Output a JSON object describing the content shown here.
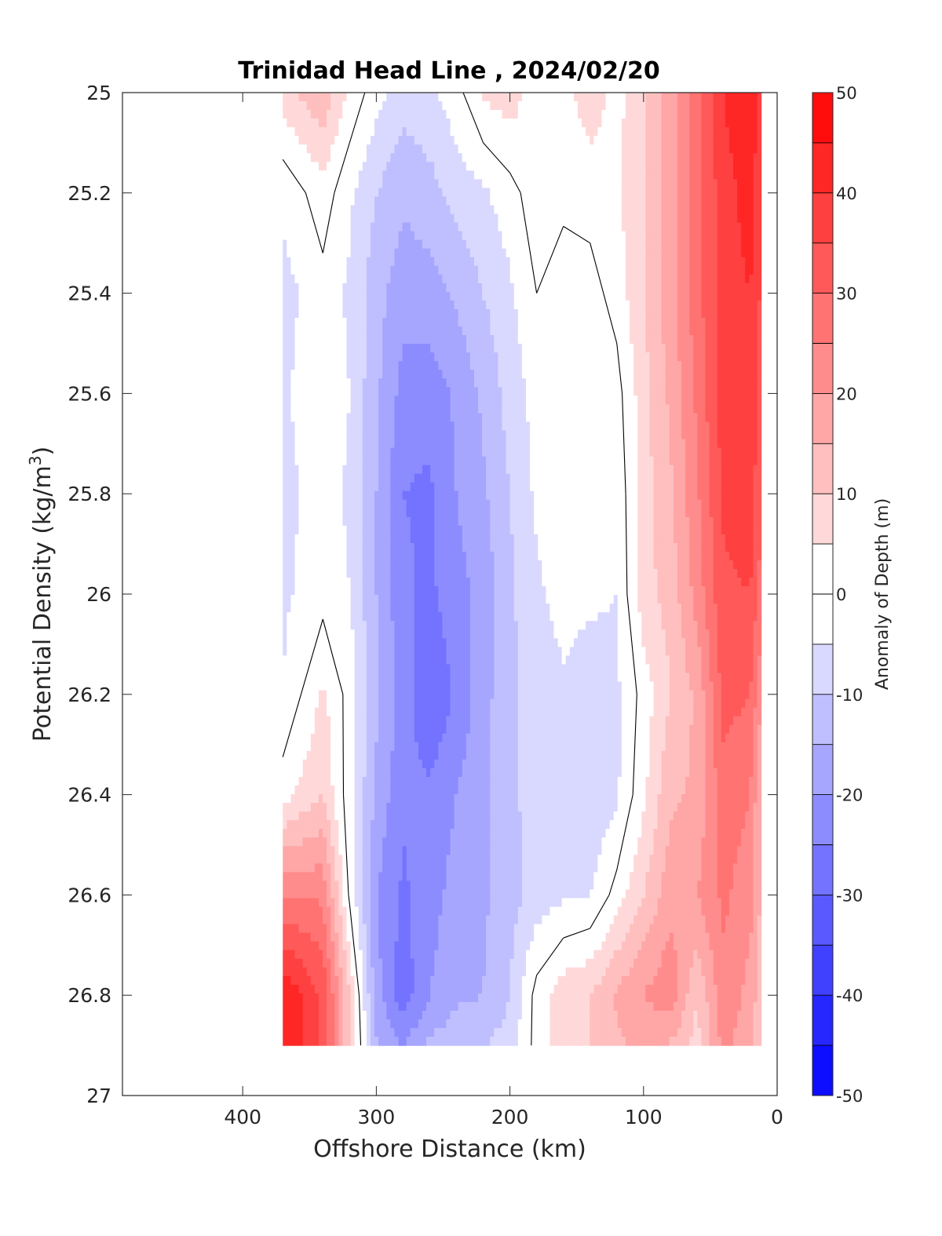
{
  "chart_data": {
    "type": "heatmap",
    "title": "Trinidad Head Line , 2024/02/20",
    "xlabel": "Offshore Distance (km)",
    "ylabel": "Potential Density (kg/m",
    "ylabel_sup": "3",
    "ylabel_close": ")",
    "colorbar_label": "Anomaly of Depth (m)",
    "xlim": [
      490,
      0
    ],
    "ylim": [
      25,
      27
    ],
    "x_direction": "reversed",
    "y_direction": "reversed",
    "grid": false,
    "x_ticks": [
      400,
      300,
      200,
      100,
      0
    ],
    "y_ticks": [
      25,
      25.2,
      25.4,
      25.6,
      25.8,
      26,
      26.2,
      26.4,
      26.6,
      26.8,
      27
    ],
    "y_tick_labels": [
      "25",
      "25.2",
      "25.4",
      "25.6",
      "25.8",
      "26",
      "26.2",
      "26.4",
      "26.6",
      "26.8",
      "27"
    ],
    "colorbar": {
      "min": -50,
      "max": 50,
      "step": 5,
      "tick_values": [
        50,
        40,
        30,
        20,
        10,
        0,
        -10,
        -20,
        -30,
        -40,
        -50
      ],
      "tick_labels": [
        "50",
        "40",
        "30",
        "20",
        "10",
        "0",
        "-10",
        "-20",
        "-30",
        "-40",
        "-50"
      ],
      "low_color": "#0000ff",
      "mid_color": "#ffffff",
      "high_color": "#ff0000"
    },
    "data_extent": {
      "x_min": 12,
      "x_max": 370,
      "y_min": 25,
      "y_max": 26.9
    },
    "x": [
      370,
      340,
      320,
      300,
      280,
      260,
      240,
      220,
      200,
      180,
      160,
      140,
      120,
      100,
      80,
      60,
      40,
      20,
      12
    ],
    "y": [
      25,
      25.2,
      25.4,
      25.6,
      25.8,
      26,
      26.2,
      26.4,
      26.6,
      26.8,
      26.9
    ],
    "z": [
      [
        8,
        14,
        4,
        -3,
        -8,
        -6,
        -2,
        6,
        8,
        2,
        3,
        8,
        3,
        10,
        18,
        28,
        40,
        45,
        38
      ],
      [
        -4,
        3,
        -4,
        -10,
        -14,
        -12,
        -8,
        -6,
        -2,
        3,
        1,
        2,
        4,
        10,
        18,
        28,
        38,
        42,
        35
      ],
      [
        -7,
        -2,
        -6,
        -13,
        -18,
        -17,
        -14,
        -10,
        -6,
        0,
        -2,
        -2,
        2,
        10,
        18,
        28,
        38,
        40,
        34
      ],
      [
        -6,
        -1,
        -5,
        -14,
        -22,
        -23,
        -19,
        -14,
        -8,
        -3,
        -4,
        -3,
        -2,
        8,
        16,
        26,
        38,
        40,
        32
      ],
      [
        -7,
        -2,
        -6,
        -15,
        -25,
        -26,
        -20,
        -16,
        -10,
        -4,
        0,
        -2,
        -4,
        8,
        14,
        24,
        36,
        38,
        30
      ],
      [
        -6,
        -2,
        -5,
        -15,
        -24,
        -26,
        -22,
        -18,
        -11,
        -6,
        -3,
        -4,
        -5,
        8,
        12,
        22,
        34,
        35,
        28
      ],
      [
        -5,
        6,
        -2,
        -14,
        -22,
        -30,
        -24,
        -17,
        -11,
        -8,
        -6,
        -8,
        -6,
        2,
        10,
        16,
        32,
        30,
        20
      ],
      [
        3,
        10,
        -3,
        -16,
        -24,
        -24,
        -20,
        -16,
        -11,
        -8,
        -9,
        -10,
        -6,
        4,
        14,
        16,
        28,
        25,
        14
      ],
      [
        25,
        24,
        -1,
        -20,
        -26,
        -22,
        -18,
        -16,
        -12,
        -8,
        -6,
        -5,
        2,
        10,
        18,
        20,
        26,
        22,
        14
      ],
      [
        45,
        34,
        10,
        -18,
        -28,
        -20,
        -16,
        -15,
        -10,
        2,
        8,
        10,
        16,
        20,
        24,
        10,
        24,
        18,
        12
      ],
      [
        45,
        34,
        10,
        -14,
        -20,
        -14,
        -12,
        -10,
        -8,
        2,
        8,
        10,
        14,
        16,
        14,
        8,
        22,
        16,
        10
      ]
    ]
  }
}
